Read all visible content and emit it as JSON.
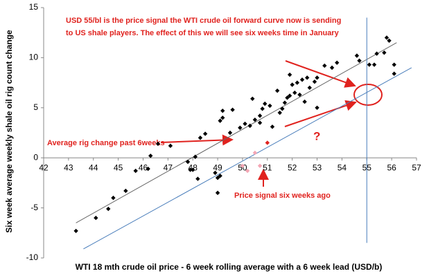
{
  "chart_data": {
    "type": "scatter",
    "x_label": "WTI 18 mth crude oil price - 6 week rolling average with a 6 week lead (USD/b)",
    "y_label": "Six week average weekly shale oil rig count change",
    "xlim": [
      42,
      57
    ],
    "xticks": [
      42,
      43,
      44,
      45,
      46,
      47,
      48,
      49,
      50,
      51,
      52,
      53,
      54,
      55,
      56,
      57
    ],
    "ylim": [
      -10,
      15
    ],
    "yticks": [
      -10,
      -5,
      0,
      5,
      10,
      15
    ],
    "annotations": [
      "USD 55/bl is the price signal the WTI crude oil forward curve now is sending",
      "to US shale players. The effect of this we will see six weeks time in January",
      "Average rig change past 6weeks",
      "Price signal six weeks ago",
      "?"
    ],
    "series": [
      {
        "color": "#000000",
        "x": [
          43.3,
          44.1,
          44.6,
          44.8,
          45.3,
          45.7,
          46.2,
          46.3,
          46.6,
          47.1,
          47.8,
          47.9,
          48.0,
          48.1,
          48.2,
          48.3,
          48.5,
          48.9,
          49.0,
          49.0,
          49.1,
          49.1,
          49.2,
          49.2,
          49.5,
          49.6,
          49.9,
          50.1,
          50.3,
          50.4,
          50.5,
          50.7,
          50.7,
          50.8,
          50.9,
          51.1,
          51.2,
          51.4,
          51.5,
          51.6,
          51.7,
          51.8,
          51.9,
          51.9,
          52.0,
          52.1,
          52.2,
          52.3,
          52.4,
          52.5,
          52.6,
          52.7,
          52.9,
          53.0,
          53.0,
          53.3,
          53.6,
          53.8,
          54.6,
          54.7,
          55.1,
          55.3,
          55.4,
          55.7,
          55.8,
          55.9,
          56.1,
          56.1
        ],
        "values": [
          -7.3,
          -6.0,
          -5.1,
          -4.0,
          -3.3,
          -1.3,
          -1.1,
          0.2,
          1.4,
          1.2,
          -0.4,
          -1.2,
          -1.2,
          0.1,
          -2.1,
          2.0,
          2.4,
          -1.5,
          -3.5,
          -2.0,
          -1.8,
          3.7,
          4.7,
          4.0,
          2.5,
          4.8,
          3.0,
          3.4,
          3.2,
          5.9,
          3.8,
          4.2,
          3.5,
          4.9,
          5.4,
          5.2,
          3.1,
          6.7,
          4.5,
          4.9,
          5.5,
          6.0,
          6.2,
          8.3,
          7.3,
          6.5,
          7.5,
          6.3,
          7.8,
          5.6,
          8.0,
          7.0,
          7.6,
          5.0,
          8.0,
          9.2,
          9.0,
          9.5,
          10.2,
          9.7,
          9.3,
          9.3,
          10.4,
          10.5,
          12.0,
          11.7,
          9.3,
          8.4
        ]
      },
      {
        "color": "#f4a6b4",
        "x": [
          50.0,
          50.2,
          50.5,
          50.7
        ],
        "values": [
          -0.8,
          -1.3,
          0.5,
          -0.8
        ]
      },
      {
        "color": "#e0221e",
        "x": [
          51.0
        ],
        "values": [
          1.5
        ]
      }
    ],
    "lines": [
      {
        "color": "#666666",
        "x": [
          43.3,
          56.2
        ],
        "values": [
          -6.5,
          11.5
        ]
      },
      {
        "color": "#4a7ebb",
        "x": [
          43.6,
          56.8
        ],
        "values": [
          -9.1,
          9.0
        ]
      },
      {
        "color": "#4a7ebb",
        "x": [
          55,
          55
        ],
        "values": [
          14,
          -8.5
        ]
      }
    ]
  }
}
